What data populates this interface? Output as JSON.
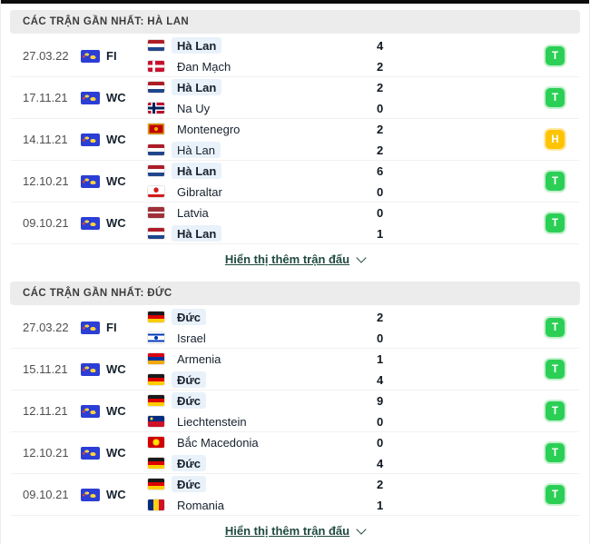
{
  "colors": {
    "win_badge": "#2ccf55",
    "draw_badge": "#fec402",
    "team_highlight_bg": "#e9f1fa",
    "header_bg": "#ececec",
    "link_color": "#204a40",
    "competition_icon_bg": "#2b3ed6"
  },
  "icons": {
    "competition": "world-map-icon",
    "show_more": "chevron-down-icon"
  },
  "sections": [
    {
      "title": "CÁC TRẬN GẦN NHẤT: HÀ LAN",
      "show_more_label": "Hiển thị thêm trận đấu",
      "matches": [
        {
          "date": "27.03.22",
          "competition": "FI",
          "home": {
            "team": "Hà Lan",
            "flag": "nl",
            "score": "4",
            "highlight": true,
            "bold": true
          },
          "away": {
            "team": "Đan Mạch",
            "flag": "dk",
            "score": "2",
            "highlight": false,
            "bold": false
          },
          "result": "T",
          "result_type": "win"
        },
        {
          "date": "17.11.21",
          "competition": "WC",
          "home": {
            "team": "Hà Lan",
            "flag": "nl",
            "score": "2",
            "highlight": true,
            "bold": true
          },
          "away": {
            "team": "Na Uy",
            "flag": "no",
            "score": "0",
            "highlight": false,
            "bold": false
          },
          "result": "T",
          "result_type": "win"
        },
        {
          "date": "14.11.21",
          "competition": "WC",
          "home": {
            "team": "Montenegro",
            "flag": "me",
            "score": "2",
            "highlight": false,
            "bold": false
          },
          "away": {
            "team": "Hà Lan",
            "flag": "nl",
            "score": "2",
            "highlight": true,
            "bold": false
          },
          "result": "H",
          "result_type": "draw"
        },
        {
          "date": "12.10.21",
          "competition": "WC",
          "home": {
            "team": "Hà Lan",
            "flag": "nl",
            "score": "6",
            "highlight": true,
            "bold": true
          },
          "away": {
            "team": "Gibraltar",
            "flag": "gi",
            "score": "0",
            "highlight": false,
            "bold": false
          },
          "result": "T",
          "result_type": "win"
        },
        {
          "date": "09.10.21",
          "competition": "WC",
          "home": {
            "team": "Latvia",
            "flag": "lv",
            "score": "0",
            "highlight": false,
            "bold": false
          },
          "away": {
            "team": "Hà Lan",
            "flag": "nl",
            "score": "1",
            "highlight": true,
            "bold": true
          },
          "result": "T",
          "result_type": "win"
        }
      ]
    },
    {
      "title": "CÁC TRẬN GẦN NHẤT: ĐỨC",
      "show_more_label": "Hiển thị thêm trận đấu",
      "matches": [
        {
          "date": "27.03.22",
          "competition": "FI",
          "home": {
            "team": "Đức",
            "flag": "de",
            "score": "2",
            "highlight": true,
            "bold": true
          },
          "away": {
            "team": "Israel",
            "flag": "il",
            "score": "0",
            "highlight": false,
            "bold": false
          },
          "result": "T",
          "result_type": "win"
        },
        {
          "date": "15.11.21",
          "competition": "WC",
          "home": {
            "team": "Armenia",
            "flag": "am",
            "score": "1",
            "highlight": false,
            "bold": false
          },
          "away": {
            "team": "Đức",
            "flag": "de",
            "score": "4",
            "highlight": true,
            "bold": true
          },
          "result": "T",
          "result_type": "win"
        },
        {
          "date": "12.11.21",
          "competition": "WC",
          "home": {
            "team": "Đức",
            "flag": "de",
            "score": "9",
            "highlight": true,
            "bold": true
          },
          "away": {
            "team": "Liechtenstein",
            "flag": "li",
            "score": "0",
            "highlight": false,
            "bold": false
          },
          "result": "T",
          "result_type": "win"
        },
        {
          "date": "12.10.21",
          "competition": "WC",
          "home": {
            "team": "Bắc Macedonia",
            "flag": "mk",
            "score": "0",
            "highlight": false,
            "bold": false
          },
          "away": {
            "team": "Đức",
            "flag": "de",
            "score": "4",
            "highlight": true,
            "bold": true
          },
          "result": "T",
          "result_type": "win"
        },
        {
          "date": "09.10.21",
          "competition": "WC",
          "home": {
            "team": "Đức",
            "flag": "de",
            "score": "2",
            "highlight": true,
            "bold": true
          },
          "away": {
            "team": "Romania",
            "flag": "ro",
            "score": "1",
            "highlight": false,
            "bold": false
          },
          "result": "T",
          "result_type": "win"
        }
      ]
    }
  ]
}
